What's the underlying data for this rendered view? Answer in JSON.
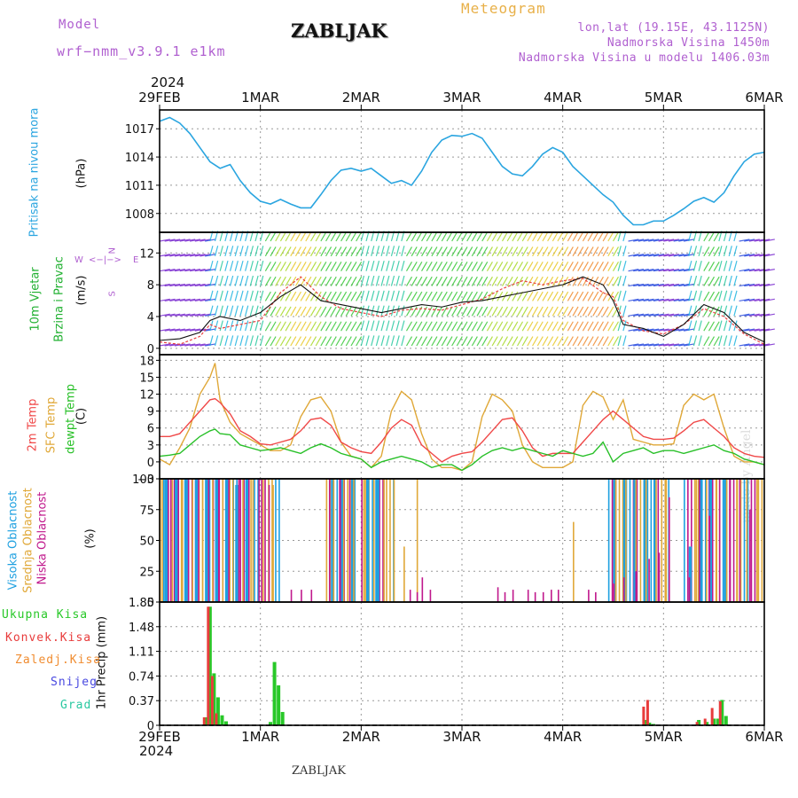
{
  "header": {
    "model_label": "Model",
    "model_value": "wrf−nmm_v3.9.1  e1km",
    "station": "ZABLJAK",
    "product": "Meteogram",
    "lonlat": "lon,lat (19.15E, 43.1125N)",
    "elevation": "Nadmorska Visina 1450m",
    "model_elevation": "Nadmorska Visina u modelu 1406.03m",
    "year_top": "2024",
    "year_bottom": "2024",
    "footer_station": "ZABLJAK",
    "watermark": "made by Angel"
  },
  "x_axis": {
    "ticks": [
      "29FEB",
      "1MAR",
      "2MAR",
      "3MAR",
      "4MAR",
      "5MAR",
      "6MAR"
    ],
    "range_days": [
      0,
      6
    ]
  },
  "panels": {
    "pressure": {
      "side_label": "Pritisak na nivou mora",
      "unit_label": "(hPa)",
      "ticks": [
        "1017",
        "1014",
        "1011",
        "1008"
      ]
    },
    "wind": {
      "side_label_1": "10m Vjetar",
      "side_label_2": "Brzina i Pravac",
      "unit_label": "(m/s)",
      "ticks": [
        "12",
        "8",
        "4",
        "0"
      ],
      "compass": {
        "n": "N",
        "s": "S",
        "e": "E",
        "w": "W",
        "up": "<",
        "down": ">",
        "center": "<−|−>"
      }
    },
    "temp": {
      "label_2m": "2m Temp",
      "label_sfc": "SFC Temp",
      "label_dew": "dewpt Temp",
      "unit_label": "(C)",
      "ticks": [
        "18",
        "15",
        "12",
        "9",
        "6",
        "3",
        "0",
        "−3"
      ]
    },
    "cloud": {
      "label_high": "Visoka Oblacnost",
      "label_mid": "Srednja Oblacnost",
      "label_low": "Niska Oblacnost",
      "unit_label": "(%)",
      "ticks": [
        "100",
        "75",
        "50",
        "25",
        "0"
      ]
    },
    "precip": {
      "legend": [
        "Ukupna Kisa",
        "Konvek.Kisa",
        "Zaledj.Kisa",
        "Snijeg",
        "Grad"
      ],
      "unit_label": "1hr Precip (mm)",
      "ticks": [
        "1.85",
        "1.48",
        "1.11",
        "0.74",
        "0.37",
        "0"
      ]
    }
  },
  "colors": {
    "pressure": "#2aa5e0",
    "temp2m": "#f04848",
    "sfc": "#e0a838",
    "dew": "#28c028",
    "high_cloud": "#1ea0e0",
    "mid_cloud": "#e0a838",
    "low_cloud": "#c0188c",
    "total_rain": "#28c828",
    "conv_rain": "#e83c3c",
    "freezing_rain": "#f08c30",
    "snow": "#4848e0",
    "hail": "#28c8a0",
    "model_text": "#b060d0",
    "product_text": "#e8b048",
    "wind_label": "#20b030"
  },
  "chart_data": [
    {
      "type": "line",
      "id": "pressure",
      "xlabel": "",
      "ylabel": "(hPa)",
      "ylim": [
        1006,
        1019
      ],
      "x": [
        0,
        0.1,
        0.2,
        0.3,
        0.4,
        0.5,
        0.6,
        0.7,
        0.8,
        0.9,
        1.0,
        1.1,
        1.2,
        1.3,
        1.4,
        1.5,
        1.6,
        1.7,
        1.8,
        1.9,
        2.0,
        2.1,
        2.2,
        2.3,
        2.4,
        2.5,
        2.6,
        2.7,
        2.8,
        2.9,
        3.0,
        3.1,
        3.2,
        3.3,
        3.4,
        3.5,
        3.6,
        3.7,
        3.8,
        3.9,
        4.0,
        4.1,
        4.2,
        4.3,
        4.4,
        4.5,
        4.6,
        4.7,
        4.8,
        4.9,
        5.0,
        5.1,
        5.2,
        5.3,
        5.4,
        5.5,
        5.6,
        5.7,
        5.8,
        5.9,
        6.0
      ],
      "series": [
        {
          "name": "Pritisak na nivou mora",
          "values": [
            1017.8,
            1018.2,
            1017.6,
            1016.5,
            1015.0,
            1013.5,
            1012.8,
            1013.2,
            1011.5,
            1010.2,
            1009.3,
            1009.0,
            1009.5,
            1009.0,
            1008.6,
            1008.6,
            1010.0,
            1011.5,
            1012.6,
            1012.8,
            1012.5,
            1012.8,
            1012.0,
            1011.2,
            1011.5,
            1011.0,
            1012.5,
            1014.5,
            1015.8,
            1016.3,
            1016.2,
            1016.5,
            1016.0,
            1014.5,
            1013.0,
            1012.2,
            1012.0,
            1013.0,
            1014.3,
            1015.0,
            1014.5,
            1013.0,
            1012.0,
            1011.0,
            1010.0,
            1009.2,
            1007.8,
            1006.8,
            1006.8,
            1007.2,
            1007.2,
            1007.8,
            1008.5,
            1009.3,
            1009.7,
            1009.2,
            1010.2,
            1012.0,
            1013.5,
            1014.3,
            1014.5
          ]
        }
      ]
    },
    {
      "type": "line",
      "id": "wind",
      "xlabel": "",
      "ylabel": "(m/s)",
      "ylim": [
        -0.8,
        14.6
      ],
      "x": [
        0,
        0.2,
        0.4,
        0.5,
        0.6,
        0.8,
        1.0,
        1.2,
        1.4,
        1.6,
        1.8,
        2.0,
        2.2,
        2.4,
        2.6,
        2.8,
        3.0,
        3.2,
        3.4,
        3.6,
        3.8,
        4.0,
        4.2,
        4.4,
        4.5,
        4.6,
        4.8,
        5.0,
        5.2,
        5.4,
        5.6,
        5.8,
        6.0
      ],
      "series": [
        {
          "name": "10m Vjetar",
          "values": [
            1.0,
            1.2,
            2.0,
            3.5,
            4.0,
            3.5,
            4.5,
            6.5,
            8.0,
            6.0,
            5.5,
            5.0,
            4.5,
            5.0,
            5.5,
            5.2,
            5.8,
            6.0,
            6.5,
            7.0,
            7.5,
            8.0,
            9.0,
            8.0,
            6.0,
            3.0,
            2.5,
            1.5,
            3.0,
            5.5,
            4.5,
            2.0,
            0.8
          ]
        },
        {
          "name": "10m Vjetar (udari)",
          "values": [
            0.8,
            0.5,
            1.5,
            3.0,
            2.5,
            3.0,
            3.5,
            7.0,
            9.0,
            6.5,
            5.0,
            4.5,
            4.0,
            4.8,
            5.0,
            4.8,
            5.5,
            6.2,
            7.5,
            8.5,
            8.0,
            8.5,
            8.8,
            7.0,
            6.5,
            3.5,
            2.2,
            1.8,
            3.0,
            5.0,
            4.0,
            1.8,
            0.5
          ]
        }
      ]
    },
    {
      "type": "line",
      "id": "temperature",
      "xlabel": "",
      "ylabel": "(C)",
      "ylim": [
        -3,
        19
      ],
      "x": [
        0,
        0.1,
        0.2,
        0.3,
        0.4,
        0.5,
        0.55,
        0.6,
        0.7,
        0.8,
        0.9,
        1.0,
        1.1,
        1.2,
        1.3,
        1.4,
        1.5,
        1.6,
        1.7,
        1.8,
        1.9,
        2.0,
        2.1,
        2.2,
        2.3,
        2.4,
        2.5,
        2.6,
        2.7,
        2.8,
        2.9,
        3.0,
        3.1,
        3.2,
        3.3,
        3.4,
        3.5,
        3.6,
        3.7,
        3.8,
        3.9,
        4.0,
        4.1,
        4.2,
        4.3,
        4.4,
        4.5,
        4.6,
        4.7,
        4.8,
        4.9,
        5.0,
        5.1,
        5.2,
        5.3,
        5.4,
        5.5,
        5.6,
        5.7,
        5.8,
        5.9,
        6.0
      ],
      "series": [
        {
          "name": "2m Temp",
          "values": [
            4.5,
            4.5,
            5.0,
            7.0,
            9.0,
            11.0,
            11.2,
            10.5,
            8.5,
            5.5,
            4.5,
            3.2,
            3.0,
            3.5,
            4.0,
            5.5,
            7.5,
            7.8,
            6.5,
            3.5,
            2.5,
            1.8,
            1.5,
            3.5,
            6.0,
            7.5,
            6.5,
            3.0,
            1.5,
            0.0,
            1.0,
            1.5,
            1.8,
            3.5,
            5.5,
            7.5,
            7.8,
            5.5,
            2.5,
            1.0,
            1.5,
            1.5,
            1.5,
            3.5,
            5.5,
            7.5,
            9.0,
            7.5,
            6.0,
            4.5,
            4.0,
            4.0,
            4.2,
            5.5,
            7.0,
            7.5,
            6.0,
            4.5,
            2.5,
            1.5,
            1.0,
            0.8
          ]
        },
        {
          "name": "SFC Temp",
          "values": [
            0.5,
            -0.5,
            2.5,
            6.0,
            12.0,
            15.0,
            17.5,
            11.0,
            7.0,
            5.0,
            4.0,
            3.0,
            2.0,
            2.0,
            3.0,
            8.0,
            11.0,
            11.5,
            9.0,
            3.5,
            1.0,
            0.5,
            -1.0,
            1.0,
            9.0,
            12.5,
            11.0,
            5.0,
            0.5,
            -1.0,
            -1.0,
            -1.5,
            0.0,
            8.0,
            12.0,
            11.0,
            9.0,
            3.0,
            0.0,
            -1.0,
            -1.0,
            -1.0,
            0.0,
            10.0,
            12.5,
            11.5,
            7.5,
            11.0,
            4.0,
            3.5,
            3.0,
            3.0,
            3.2,
            10.0,
            12.0,
            11.0,
            12.0,
            6.0,
            1.0,
            0.0,
            0.0,
            -0.5
          ]
        },
        {
          "name": "dewpt Temp",
          "values": [
            1.0,
            1.2,
            1.5,
            3.0,
            4.5,
            5.5,
            5.8,
            5.0,
            4.8,
            3.0,
            2.5,
            2.0,
            2.2,
            2.5,
            2.0,
            1.5,
            2.5,
            3.2,
            2.5,
            1.5,
            1.0,
            0.5,
            -1.0,
            0.0,
            0.5,
            1.0,
            0.5,
            0.0,
            -1.0,
            -0.5,
            -0.5,
            -1.5,
            -0.5,
            1.0,
            2.0,
            2.5,
            2.0,
            2.5,
            2.0,
            1.5,
            1.0,
            2.0,
            1.5,
            1.0,
            1.5,
            3.5,
            0.0,
            1.5,
            2.0,
            2.5,
            1.5,
            2.0,
            2.0,
            1.5,
            2.0,
            2.5,
            3.0,
            2.0,
            1.5,
            0.5,
            0.0,
            -0.5
          ]
        }
      ]
    },
    {
      "type": "bar",
      "id": "cloud",
      "xlabel": "",
      "ylabel": "(%)",
      "ylim": [
        0,
        100
      ],
      "cloudy_intervals": [
        [
          0.0,
          0.55,
          100
        ],
        [
          0.55,
          1.2,
          100
        ],
        [
          1.65,
          1.95,
          100
        ],
        [
          2.0,
          2.35,
          100
        ],
        [
          4.45,
          5.05,
          100
        ],
        [
          5.2,
          6.0,
          100
        ]
      ],
      "series": [
        {
          "name": "Visoka Oblacnost",
          "x": [
            0.05,
            0.15,
            0.25,
            0.35,
            0.45,
            0.55,
            0.65,
            0.75,
            0.85,
            1.7,
            1.8,
            1.9,
            2.05,
            2.15,
            4.5,
            4.6,
            4.7,
            4.8,
            4.9,
            5.25,
            5.35,
            5.45,
            5.6
          ],
          "values": [
            100,
            100,
            100,
            100,
            100,
            100,
            100,
            95,
            100,
            100,
            100,
            100,
            100,
            100,
            100,
            100,
            100,
            100,
            100,
            45,
            100,
            100,
            100
          ]
        },
        {
          "name": "Srednja Oblacnost",
          "x": [
            0.02,
            0.12,
            0.22,
            0.32,
            0.42,
            0.52,
            0.62,
            0.72,
            0.82,
            0.92,
            1.02,
            1.12,
            1.72,
            1.82,
            1.92,
            2.02,
            2.12,
            2.22,
            2.32,
            2.42,
            2.55,
            4.1,
            4.52,
            4.62,
            4.72,
            4.82,
            4.92,
            5.02,
            5.32,
            5.42,
            5.52,
            5.62,
            5.72,
            5.82,
            5.92
          ],
          "values": [
            100,
            100,
            100,
            100,
            100,
            100,
            100,
            100,
            100,
            100,
            100,
            95,
            100,
            100,
            100,
            100,
            100,
            100,
            100,
            45,
            100,
            65,
            100,
            100,
            100,
            100,
            100,
            100,
            100,
            100,
            100,
            100,
            100,
            100,
            100
          ]
        },
        {
          "name": "Niska Oblacnost",
          "x": [
            0.08,
            0.18,
            0.28,
            0.38,
            0.48,
            0.58,
            0.68,
            0.78,
            0.88,
            0.98,
            1.08,
            1.3,
            1.4,
            1.5,
            1.68,
            1.78,
            1.88,
            2.48,
            2.55,
            2.6,
            2.68,
            3.35,
            3.42,
            3.5,
            3.65,
            3.72,
            3.8,
            3.88,
            3.95,
            4.25,
            4.32,
            4.5,
            4.6,
            4.72,
            4.85,
            4.95,
            5.05,
            5.25,
            5.35,
            5.45,
            5.55,
            5.65,
            5.75,
            5.85
          ],
          "values": [
            100,
            100,
            100,
            100,
            100,
            100,
            100,
            100,
            100,
            100,
            95,
            10,
            10,
            10,
            100,
            100,
            100,
            10,
            8,
            20,
            10,
            12,
            8,
            10,
            10,
            8,
            8,
            10,
            10,
            10,
            8,
            15,
            20,
            25,
            35,
            40,
            85,
            20,
            100,
            70,
            100,
            100,
            100,
            75
          ]
        }
      ]
    },
    {
      "type": "bar",
      "id": "precip",
      "xlabel": "",
      "ylabel": "1hr Precip (mm)",
      "ylim": [
        0,
        1.85
      ],
      "series": [
        {
          "name": "Ukupna Kisa",
          "x": [
            0.46,
            0.5,
            0.54,
            0.58,
            0.62,
            0.66,
            1.1,
            1.14,
            1.18,
            1.22,
            4.82,
            4.86,
            4.9,
            5.35,
            5.43,
            5.5,
            5.54,
            5.58,
            5.62
          ],
          "values": [
            0.12,
            1.78,
            0.78,
            0.42,
            0.15,
            0.06,
            0.05,
            0.95,
            0.6,
            0.2,
            0.08,
            0.04,
            0.02,
            0.08,
            0.05,
            0.1,
            0.1,
            0.38,
            0.14
          ]
        },
        {
          "name": "Konvek.Kisa",
          "x": [
            0.46,
            0.5,
            0.54,
            0.58,
            4.82,
            4.86,
            5.35,
            5.43,
            5.5,
            5.58
          ],
          "values": [
            0.12,
            1.78,
            0.74,
            0.18,
            0.28,
            0.38,
            0.05,
            0.1,
            0.26,
            0.36
          ]
        },
        {
          "name": "Zaledj.Kisa",
          "x": [],
          "values": []
        },
        {
          "name": "Snijeg",
          "x": [],
          "values": []
        },
        {
          "name": "Grad",
          "x": [],
          "values": []
        }
      ]
    }
  ]
}
